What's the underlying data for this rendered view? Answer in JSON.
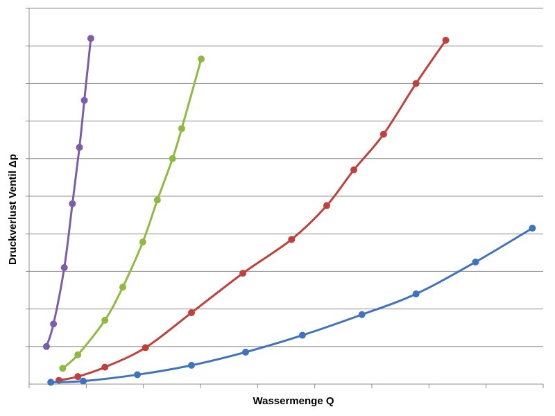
{
  "chart_data": {
    "type": "line",
    "title": "",
    "xlabel": "Wassermenge Q",
    "ylabel": "Druckverlust Ventil Δp",
    "xlim": [
      0,
      9.5
    ],
    "ylim": [
      0,
      10
    ],
    "x_tick_labels": [],
    "y_tick_labels": [],
    "grid": "horizontal",
    "legend": "none",
    "series": [
      {
        "color": "#7b5ea7",
        "points": [
          [
            0.32,
            1.0
          ],
          [
            0.45,
            1.6
          ],
          [
            0.65,
            3.1
          ],
          [
            0.8,
            4.8
          ],
          [
            0.93,
            6.3
          ],
          [
            1.02,
            7.55
          ],
          [
            1.14,
            9.2
          ]
        ]
      },
      {
        "color": "#8fba3f",
        "points": [
          [
            0.62,
            0.42
          ],
          [
            0.9,
            0.78
          ],
          [
            1.4,
            1.7
          ],
          [
            1.73,
            2.58
          ],
          [
            2.1,
            3.78
          ],
          [
            2.37,
            4.9
          ],
          [
            2.65,
            6.0
          ],
          [
            2.82,
            6.8
          ],
          [
            3.18,
            8.65
          ]
        ]
      },
      {
        "color": "#c0403b",
        "points": [
          [
            0.55,
            0.1
          ],
          [
            0.9,
            0.2
          ],
          [
            1.4,
            0.45
          ],
          [
            2.15,
            0.97
          ],
          [
            3.0,
            1.9
          ],
          [
            3.95,
            2.95
          ],
          [
            4.85,
            3.85
          ],
          [
            5.5,
            4.75
          ],
          [
            6.0,
            5.7
          ],
          [
            6.55,
            6.65
          ],
          [
            7.15,
            8.0
          ],
          [
            7.7,
            9.15
          ]
        ]
      },
      {
        "color": "#3f73c0",
        "points": [
          [
            0.4,
            0.05
          ],
          [
            1.0,
            0.08
          ],
          [
            2.0,
            0.25
          ],
          [
            3.0,
            0.5
          ],
          [
            4.0,
            0.85
          ],
          [
            5.05,
            1.3
          ],
          [
            6.15,
            1.85
          ],
          [
            7.15,
            2.4
          ],
          [
            8.25,
            3.25
          ],
          [
            9.3,
            4.15
          ]
        ]
      }
    ]
  }
}
